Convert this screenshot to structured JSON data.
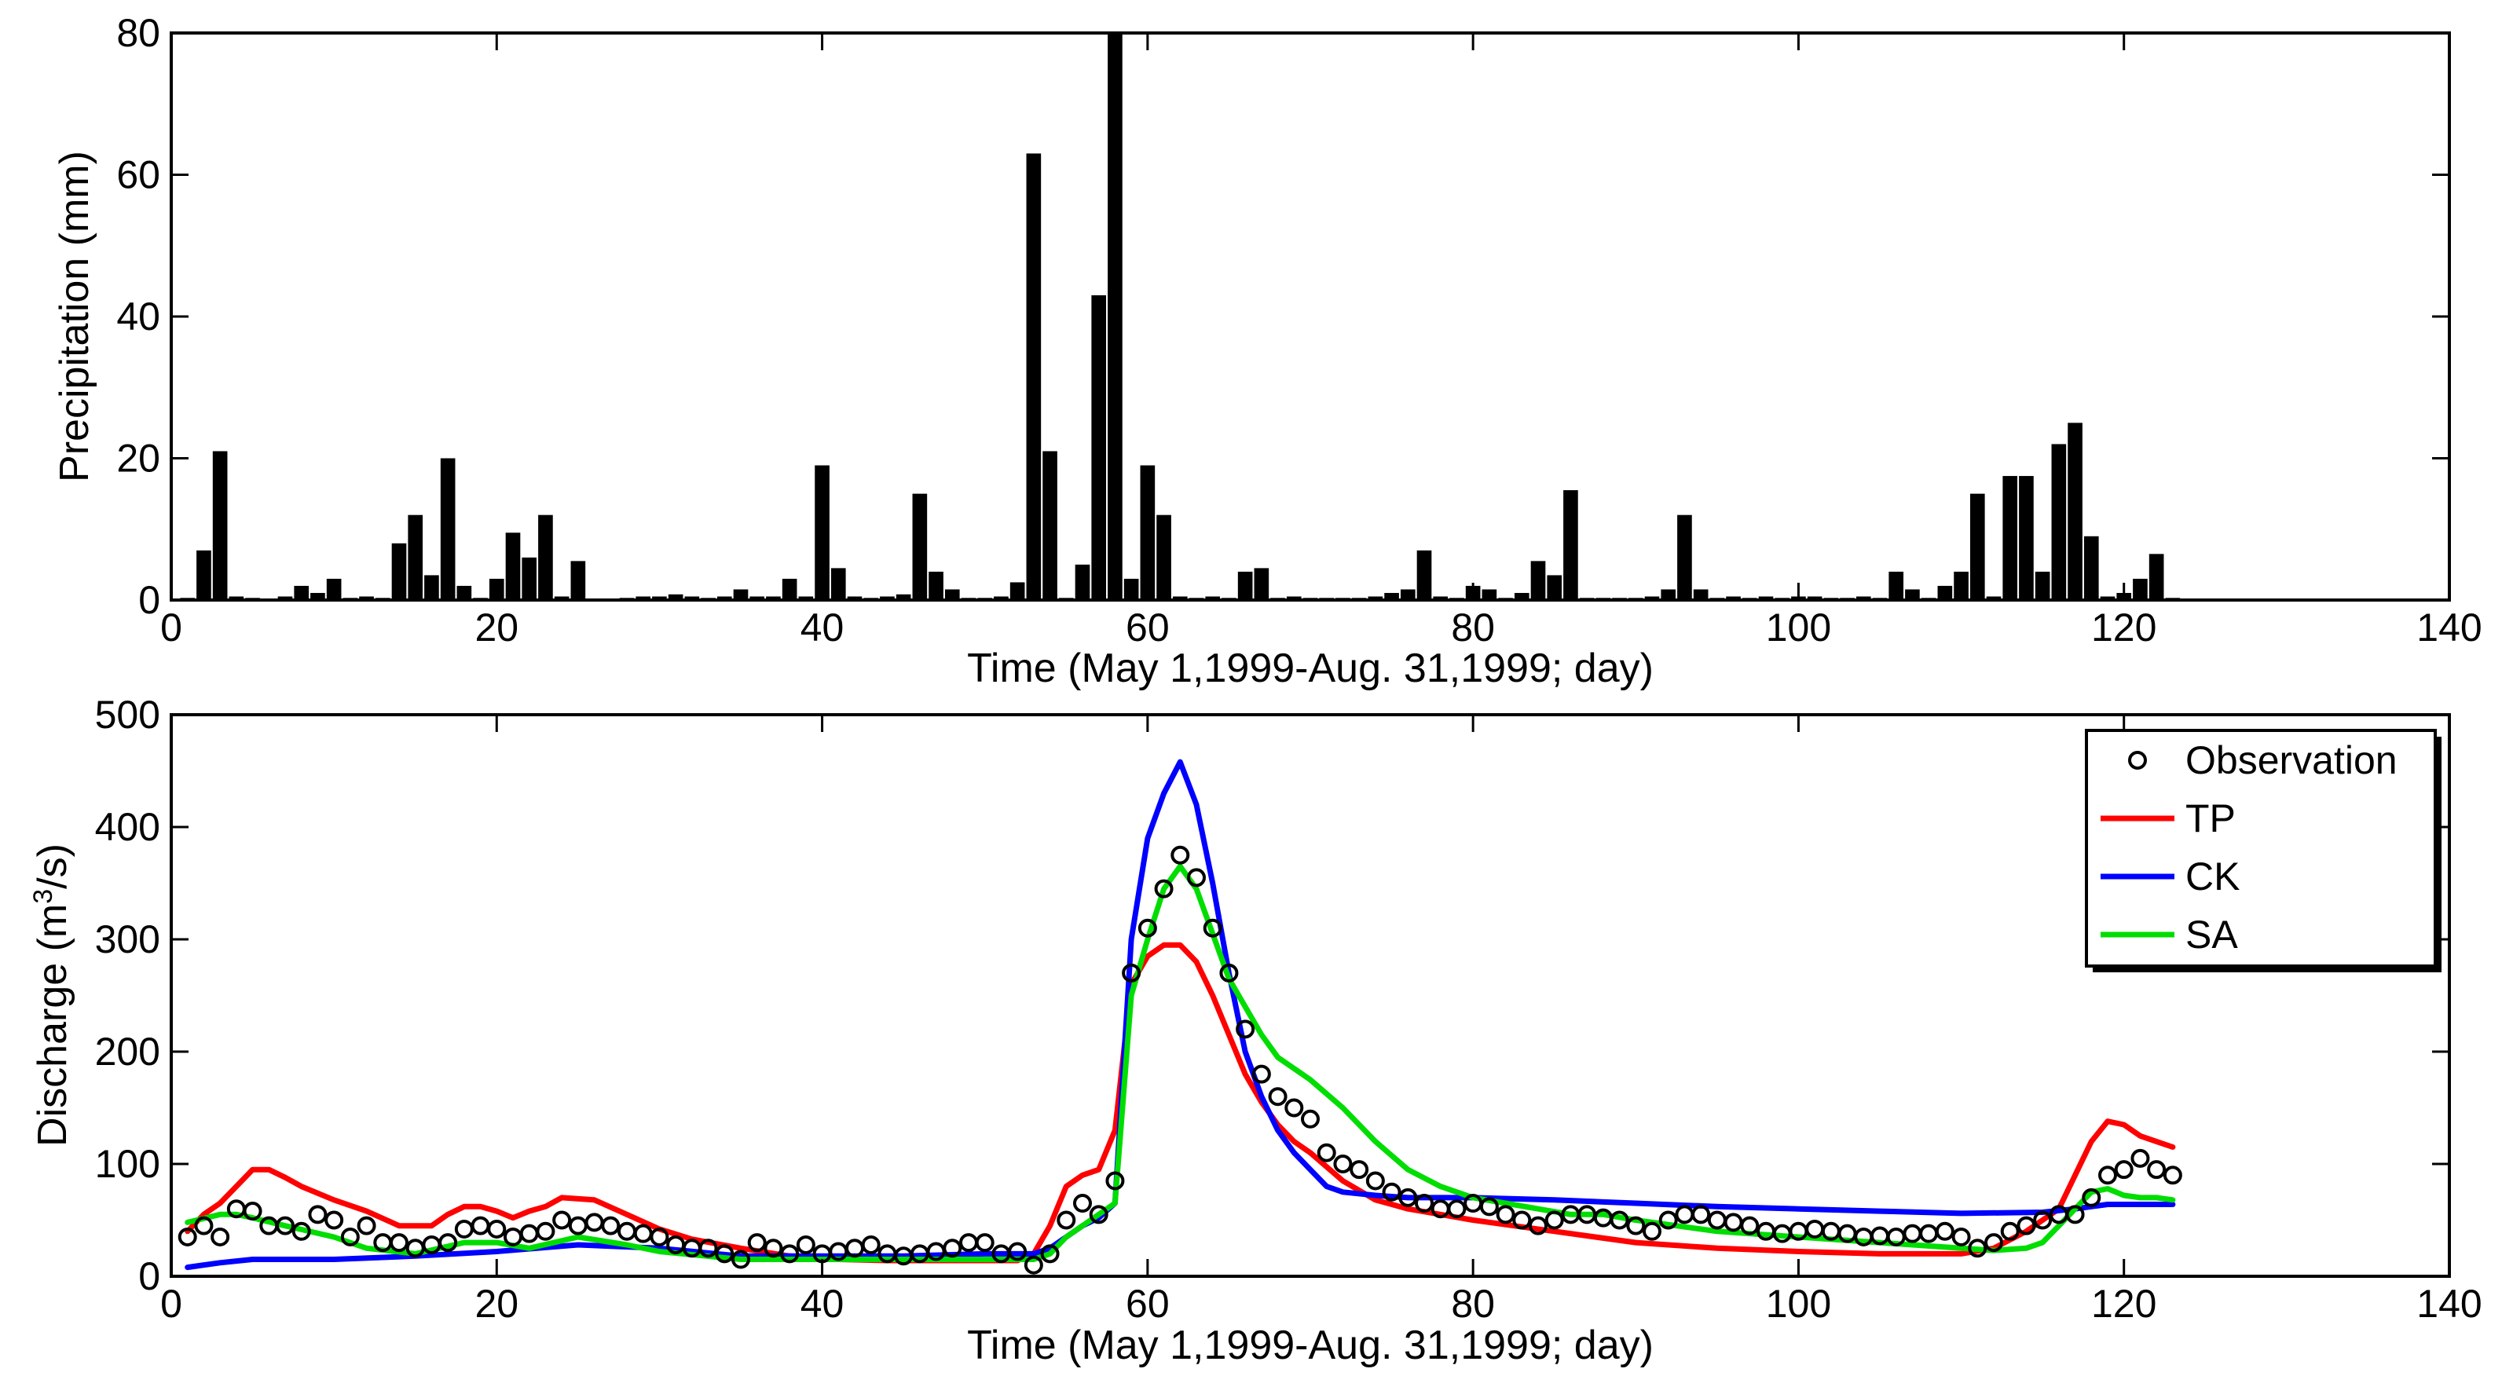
{
  "chart_data": [
    {
      "type": "bar",
      "title": "",
      "xlabel": "Time (May 1,1999-Aug. 31,1999; day)",
      "ylabel": "Precipitation (mm)",
      "xlim": [
        0,
        140
      ],
      "ylim": [
        0,
        80
      ],
      "xticks": [
        "0",
        "20",
        "40",
        "60",
        "80",
        "100",
        "120",
        "140"
      ],
      "yticks": [
        "0",
        "20",
        "40",
        "60",
        "80"
      ],
      "series": [
        {
          "name": "Precipitation",
          "x": [
            1,
            2,
            3,
            4,
            5,
            6,
            7,
            8,
            9,
            10,
            11,
            12,
            13,
            14,
            15,
            16,
            17,
            18,
            19,
            20,
            21,
            22,
            23,
            24,
            25,
            26,
            27,
            28,
            29,
            30,
            31,
            32,
            33,
            34,
            35,
            36,
            37,
            38,
            39,
            40,
            41,
            42,
            43,
            44,
            45,
            46,
            47,
            48,
            49,
            50,
            51,
            52,
            53,
            54,
            55,
            56,
            57,
            58,
            59,
            60,
            61,
            62,
            63,
            64,
            65,
            66,
            67,
            68,
            69,
            70,
            71,
            72,
            73,
            74,
            75,
            76,
            77,
            78,
            79,
            80,
            81,
            82,
            83,
            84,
            85,
            86,
            87,
            88,
            89,
            90,
            91,
            92,
            93,
            94,
            95,
            96,
            97,
            98,
            99,
            100,
            101,
            102,
            103,
            104,
            105,
            106,
            107,
            108,
            109,
            110,
            111,
            112,
            113,
            114,
            115,
            116,
            117,
            118,
            119,
            120,
            121,
            122,
            123
          ],
          "values": [
            0.3,
            7,
            21,
            0.5,
            0.3,
            0.2,
            0.5,
            2,
            1,
            3,
            0.3,
            0.5,
            0.3,
            8,
            12,
            3.5,
            20,
            2,
            0.3,
            3,
            9.5,
            6,
            12,
            0.5,
            5.5,
            0.2,
            0.2,
            0.3,
            0.5,
            0.5,
            0.8,
            0.5,
            0.3,
            0.5,
            1.5,
            0.5,
            0.5,
            3,
            0.5,
            19,
            4.5,
            0.5,
            0.3,
            0.5,
            0.8,
            15,
            4,
            1.5,
            0.3,
            0.3,
            0.5,
            2.5,
            63,
            21,
            0.3,
            5,
            43,
            80,
            3,
            19,
            12,
            0.5,
            0.3,
            0.5,
            0.3,
            4,
            4.5,
            0.3,
            0.5,
            0.3,
            0.3,
            0.3,
            0.3,
            0.5,
            1,
            1.5,
            7,
            0.5,
            0.3,
            2,
            1.5,
            0.3,
            1,
            5.5,
            3.5,
            15.5,
            0.3,
            0.3,
            0.3,
            0.3,
            0.5,
            1.5,
            12,
            1.5,
            0.3,
            0.5,
            0.3,
            0.5,
            0.3,
            0.5,
            0.5,
            0.3,
            0.3,
            0.5,
            0.3,
            4,
            1.5,
            0.3,
            2,
            4,
            15,
            0.5,
            17.5,
            17.5,
            4,
            22,
            25,
            9,
            0.5,
            1,
            3,
            6.5,
            0.3
          ]
        }
      ]
    },
    {
      "type": "line",
      "title": "",
      "xlabel": "Time (May 1,1999-Aug. 31,1999; day)",
      "ylabel": "Discharge (m³/s)",
      "ylabel_parts": {
        "pre": "Discharge (m",
        "sup": "3",
        "post": "/s)"
      },
      "xlim": [
        0,
        140
      ],
      "ylim": [
        0,
        500
      ],
      "xticks": [
        "0",
        "20",
        "40",
        "60",
        "80",
        "100",
        "120",
        "140"
      ],
      "yticks": [
        "0",
        "100",
        "200",
        "300",
        "400",
        "500"
      ],
      "legend": {
        "position": "top-right",
        "entries": [
          {
            "label": "Observation",
            "marker": "circle",
            "color": "#000000"
          },
          {
            "label": "TP",
            "marker": "line",
            "color": "#ff0000"
          },
          {
            "label": "CK",
            "marker": "line",
            "color": "#0000ff"
          },
          {
            "label": "SA",
            "marker": "line",
            "color": "#00dd00"
          }
        ]
      },
      "observation": {
        "x": [
          1,
          2,
          3,
          4,
          5,
          6,
          7,
          8,
          9,
          10,
          11,
          12,
          13,
          14,
          15,
          16,
          17,
          18,
          19,
          20,
          21,
          22,
          23,
          24,
          25,
          26,
          27,
          28,
          29,
          30,
          31,
          32,
          33,
          34,
          35,
          36,
          37,
          38,
          39,
          40,
          41,
          42,
          43,
          44,
          45,
          46,
          47,
          48,
          49,
          50,
          51,
          52,
          53,
          54,
          55,
          56,
          57,
          58,
          59,
          60,
          61,
          62,
          63,
          64,
          65,
          66,
          67,
          68,
          69,
          70,
          71,
          72,
          73,
          74,
          75,
          76,
          77,
          78,
          79,
          80,
          81,
          82,
          83,
          84,
          85,
          86,
          87,
          88,
          89,
          90,
          91,
          92,
          93,
          94,
          95,
          96,
          97,
          98,
          99,
          100,
          101,
          102,
          103,
          104,
          105,
          106,
          107,
          108,
          109,
          110,
          111,
          112,
          113,
          114,
          115,
          116,
          117,
          118,
          119,
          120,
          121,
          122,
          123
        ],
        "values": [
          35,
          45,
          35,
          60,
          58,
          45,
          45,
          40,
          55,
          50,
          35,
          45,
          30,
          30,
          25,
          28,
          30,
          42,
          45,
          42,
          35,
          38,
          40,
          50,
          45,
          48,
          45,
          40,
          38,
          35,
          28,
          25,
          25,
          20,
          15,
          30,
          25,
          20,
          28,
          20,
          22,
          25,
          28,
          20,
          18,
          20,
          22,
          25,
          30,
          30,
          20,
          22,
          10,
          20,
          50,
          65,
          55,
          85,
          270,
          310,
          345,
          375,
          355,
          310,
          270,
          220,
          180,
          160,
          150,
          140,
          110,
          100,
          95,
          85,
          75,
          70,
          65,
          60,
          60,
          65,
          62,
          55,
          50,
          45,
          50,
          55,
          55,
          52,
          50,
          45,
          40,
          50,
          55,
          55,
          50,
          48,
          45,
          40,
          38,
          40,
          42,
          40,
          38,
          35,
          36,
          35,
          38,
          38,
          40,
          35,
          25,
          30,
          40,
          45,
          50,
          55,
          55,
          70,
          90,
          95,
          105,
          95,
          90
        ]
      },
      "series": [
        {
          "name": "TP",
          "color": "#ff0000",
          "x": [
            1,
            2,
            3,
            4,
            5,
            6,
            7,
            8,
            10,
            12,
            14,
            16,
            17,
            18,
            19,
            20,
            21,
            22,
            23,
            24,
            26,
            28,
            30,
            32,
            35,
            38,
            41,
            44,
            47,
            50,
            52,
            53,
            54,
            55,
            56,
            57,
            58,
            59,
            60,
            61,
            62,
            63,
            64,
            65,
            66,
            67,
            68,
            69,
            70,
            72,
            74,
            76,
            78,
            80,
            85,
            90,
            95,
            100,
            105,
            110,
            112,
            114,
            116,
            117,
            118,
            119,
            120,
            121,
            122,
            123
          ],
          "values": [
            40,
            55,
            65,
            80,
            95,
            95,
            88,
            80,
            68,
            58,
            45,
            45,
            55,
            62,
            62,
            58,
            52,
            58,
            62,
            70,
            68,
            55,
            42,
            33,
            25,
            18,
            15,
            14,
            14,
            14,
            14,
            20,
            45,
            80,
            90,
            95,
            130,
            260,
            285,
            295,
            295,
            280,
            250,
            215,
            180,
            155,
            135,
            120,
            110,
            85,
            68,
            60,
            55,
            50,
            40,
            30,
            25,
            22,
            20,
            20,
            25,
            40,
            60,
            90,
            120,
            138,
            135,
            125,
            120,
            115
          ]
        },
        {
          "name": "CK",
          "color": "#0000ff",
          "x": [
            1,
            3,
            5,
            10,
            15,
            20,
            25,
            30,
            35,
            40,
            45,
            50,
            53,
            54,
            55,
            56,
            57,
            58,
            59,
            60,
            61,
            62,
            63,
            64,
            65,
            66,
            67,
            68,
            69,
            70,
            71,
            72,
            74,
            76,
            78,
            80,
            85,
            90,
            95,
            100,
            105,
            110,
            115,
            117,
            118,
            119,
            120,
            121,
            122,
            123
          ],
          "values": [
            8,
            12,
            15,
            15,
            18,
            22,
            28,
            25,
            18,
            18,
            18,
            20,
            20,
            25,
            35,
            45,
            52,
            65,
            300,
            390,
            430,
            458,
            420,
            350,
            270,
            200,
            160,
            130,
            110,
            95,
            80,
            75,
            72,
            70,
            70,
            70,
            68,
            65,
            62,
            60,
            58,
            56,
            57,
            60,
            62,
            64,
            64,
            64,
            64,
            64
          ]
        },
        {
          "name": "SA",
          "color": "#00dd00",
          "x": [
            1,
            3,
            4,
            5,
            7,
            10,
            12,
            15,
            18,
            20,
            22,
            25,
            28,
            30,
            35,
            40,
            45,
            50,
            53,
            54,
            55,
            56,
            57,
            58,
            59,
            60,
            61,
            62,
            63,
            64,
            65,
            66,
            67,
            68,
            70,
            72,
            74,
            76,
            78,
            80,
            82,
            84,
            86,
            88,
            90,
            95,
            100,
            105,
            110,
            112,
            114,
            115,
            116,
            117,
            118,
            119,
            120,
            121,
            122,
            123
          ],
          "values": [
            48,
            55,
            55,
            52,
            45,
            35,
            25,
            20,
            30,
            30,
            25,
            35,
            28,
            22,
            15,
            15,
            15,
            15,
            15,
            20,
            35,
            45,
            55,
            65,
            250,
            300,
            345,
            365,
            345,
            305,
            265,
            240,
            215,
            195,
            175,
            150,
            120,
            95,
            80,
            70,
            65,
            60,
            55,
            55,
            50,
            40,
            35,
            30,
            25,
            23,
            25,
            30,
            45,
            60,
            75,
            78,
            72,
            70,
            70,
            68
          ]
        }
      ]
    }
  ]
}
